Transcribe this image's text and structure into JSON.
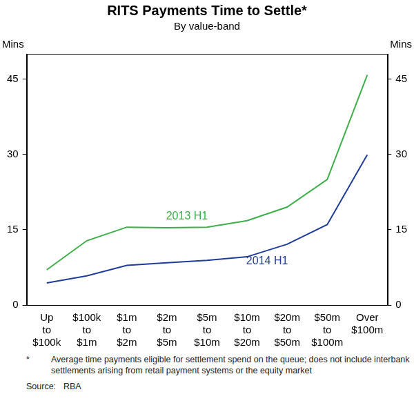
{
  "chart_data": {
    "type": "line",
    "title": "RITS Payments Time to Settle*",
    "subtitle": "By value-band",
    "y_label": "Mins",
    "y2_label": "Mins",
    "categories": [
      "Up to $100k",
      "$100k to $1m",
      "$1m to $2m",
      "$2m to $5m",
      "$5m to $10m",
      "$10m to $20m",
      "$20m to $50m",
      "$50m to $100m",
      "Over $100m"
    ],
    "series": [
      {
        "name": "2013 H1",
        "color": "#3dae49",
        "values": [
          7,
          12.8,
          15.5,
          15.4,
          15.5,
          16.8,
          19.5,
          25,
          45.8
        ]
      },
      {
        "name": "2014 H1",
        "color": "#1f3c96",
        "values": [
          4.4,
          5.8,
          7.9,
          8.4,
          8.9,
          9.6,
          12.1,
          16,
          29.9
        ]
      }
    ],
    "ylim": [
      0,
      50
    ],
    "yticks": [
      0,
      15,
      30,
      45
    ],
    "y2lim": [
      0,
      50
    ],
    "y2ticks": [
      0,
      15,
      30,
      45
    ],
    "grid": false,
    "footnote_mark": "*",
    "footnote": "Average time payments eligible for settlement spend on the queue; does not include interbank settlements arising from retail payment systems or the equity market",
    "source_label": "Source:",
    "source": "RBA"
  }
}
